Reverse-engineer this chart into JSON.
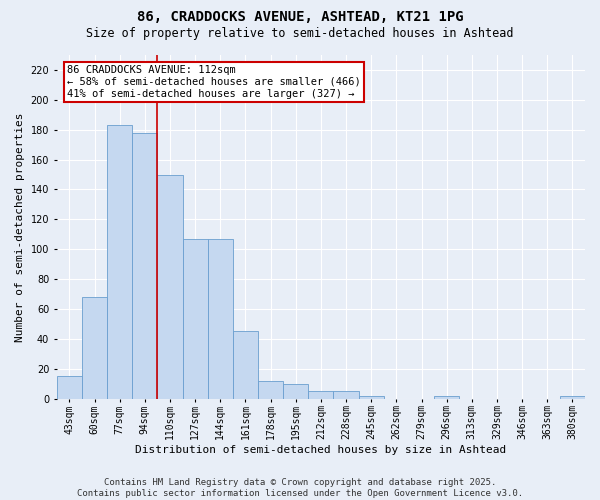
{
  "title": "86, CRADDOCKS AVENUE, ASHTEAD, KT21 1PG",
  "subtitle": "Size of property relative to semi-detached houses in Ashtead",
  "xlabel": "Distribution of semi-detached houses by size in Ashtead",
  "ylabel": "Number of semi-detached properties",
  "categories": [
    "43sqm",
    "60sqm",
    "77sqm",
    "94sqm",
    "110sqm",
    "127sqm",
    "144sqm",
    "161sqm",
    "178sqm",
    "195sqm",
    "212sqm",
    "228sqm",
    "245sqm",
    "262sqm",
    "279sqm",
    "296sqm",
    "313sqm",
    "329sqm",
    "346sqm",
    "363sqm",
    "380sqm"
  ],
  "bar_values": [
    15,
    68,
    183,
    178,
    150,
    107,
    107,
    45,
    12,
    10,
    5,
    5,
    2,
    0,
    0,
    2,
    0,
    0,
    0,
    0,
    2
  ],
  "bar_color": "#c5d8f0",
  "bar_edge_color": "#6a9ecf",
  "vline_color": "#cc0000",
  "vline_label": "86 CRADDOCKS AVENUE: 112sqm",
  "annotation_line1": "← 58% of semi-detached houses are smaller (466)",
  "annotation_line2": "41% of semi-detached houses are larger (327) →",
  "annotation_box_color": "#ffffff",
  "annotation_box_edge": "#cc0000",
  "ylim": [
    0,
    230
  ],
  "yticks": [
    0,
    20,
    40,
    60,
    80,
    100,
    120,
    140,
    160,
    180,
    200,
    220
  ],
  "footer_line1": "Contains HM Land Registry data © Crown copyright and database right 2025.",
  "footer_line2": "Contains public sector information licensed under the Open Government Licence v3.0.",
  "background_color": "#e8eef7",
  "plot_background": "#e8eef7",
  "grid_color": "#ffffff",
  "title_fontsize": 10,
  "subtitle_fontsize": 8.5,
  "axis_label_fontsize": 8,
  "tick_fontsize": 7,
  "footer_fontsize": 6.5,
  "annotation_fontsize": 7.5
}
